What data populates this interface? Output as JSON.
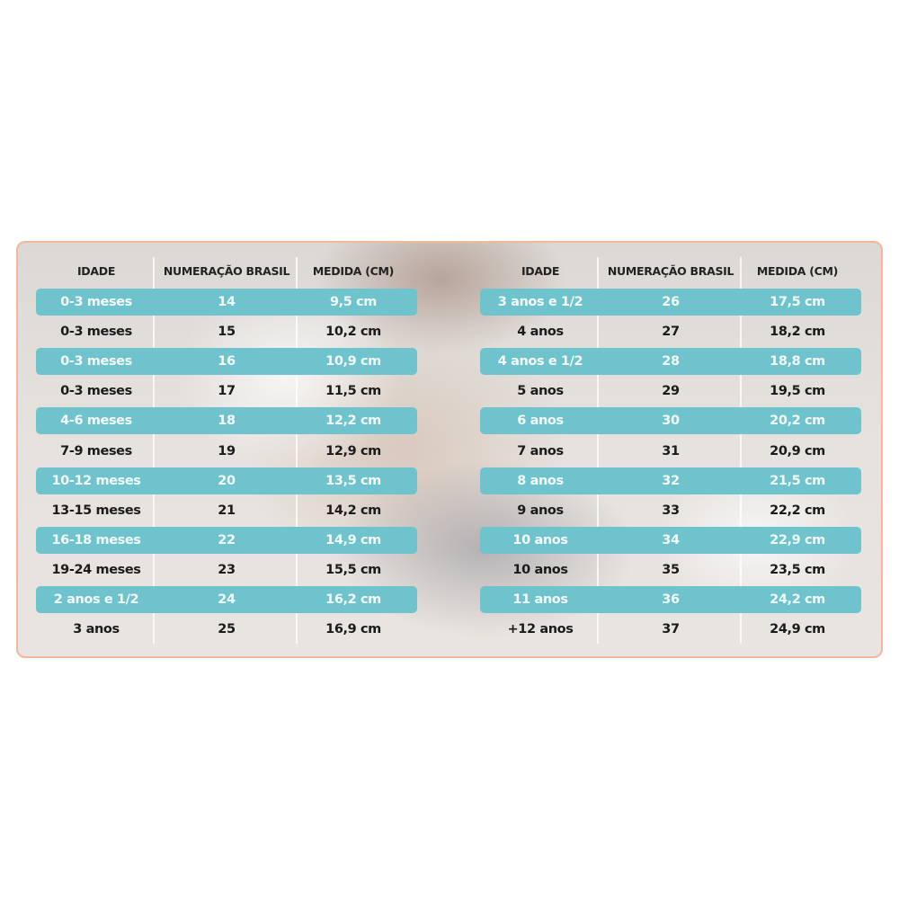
{
  "colors": {
    "highlight": "#6ec3cc",
    "border": "#f3b89a"
  },
  "tables": [
    {
      "headers": [
        "IDADE",
        "NUMERAÇÃO BRASIL",
        "MEDIDA (CM)"
      ],
      "rows": [
        [
          "0-3 meses",
          "14",
          "9,5 cm"
        ],
        [
          "0-3 meses",
          "15",
          "10,2 cm"
        ],
        [
          "0-3 meses",
          "16",
          "10,9 cm"
        ],
        [
          "0-3 meses",
          "17",
          "11,5 cm"
        ],
        [
          "4-6 meses",
          "18",
          "12,2 cm"
        ],
        [
          "7-9 meses",
          "19",
          "12,9 cm"
        ],
        [
          "10-12 meses",
          "20",
          "13,5 cm"
        ],
        [
          "13-15 meses",
          "21",
          "14,2 cm"
        ],
        [
          "16-18 meses",
          "22",
          "14,9 cm"
        ],
        [
          "19-24 meses",
          "23",
          "15,5 cm"
        ],
        [
          "2 anos e 1/2",
          "24",
          "16,2 cm"
        ],
        [
          "3 anos",
          "25",
          "16,9 cm"
        ]
      ]
    },
    {
      "headers": [
        "IDADE",
        "NUMERAÇÃO BRASIL",
        "MEDIDA (CM)"
      ],
      "rows": [
        [
          "3 anos e 1/2",
          "26",
          "17,5 cm"
        ],
        [
          "4 anos",
          "27",
          "18,2 cm"
        ],
        [
          "4 anos e 1/2",
          "28",
          "18,8 cm"
        ],
        [
          "5 anos",
          "29",
          "19,5 cm"
        ],
        [
          "6 anos",
          "30",
          "20,2 cm"
        ],
        [
          "7 anos",
          "31",
          "20,9 cm"
        ],
        [
          "8 anos",
          "32",
          "21,5 cm"
        ],
        [
          "9 anos",
          "33",
          "22,2 cm"
        ],
        [
          "10 anos",
          "34",
          "22,9 cm"
        ],
        [
          "10 anos",
          "35",
          "23,5 cm"
        ],
        [
          "11 anos",
          "36",
          "24,2 cm"
        ],
        [
          "+12 anos",
          "37",
          "24,9 cm"
        ]
      ]
    }
  ]
}
